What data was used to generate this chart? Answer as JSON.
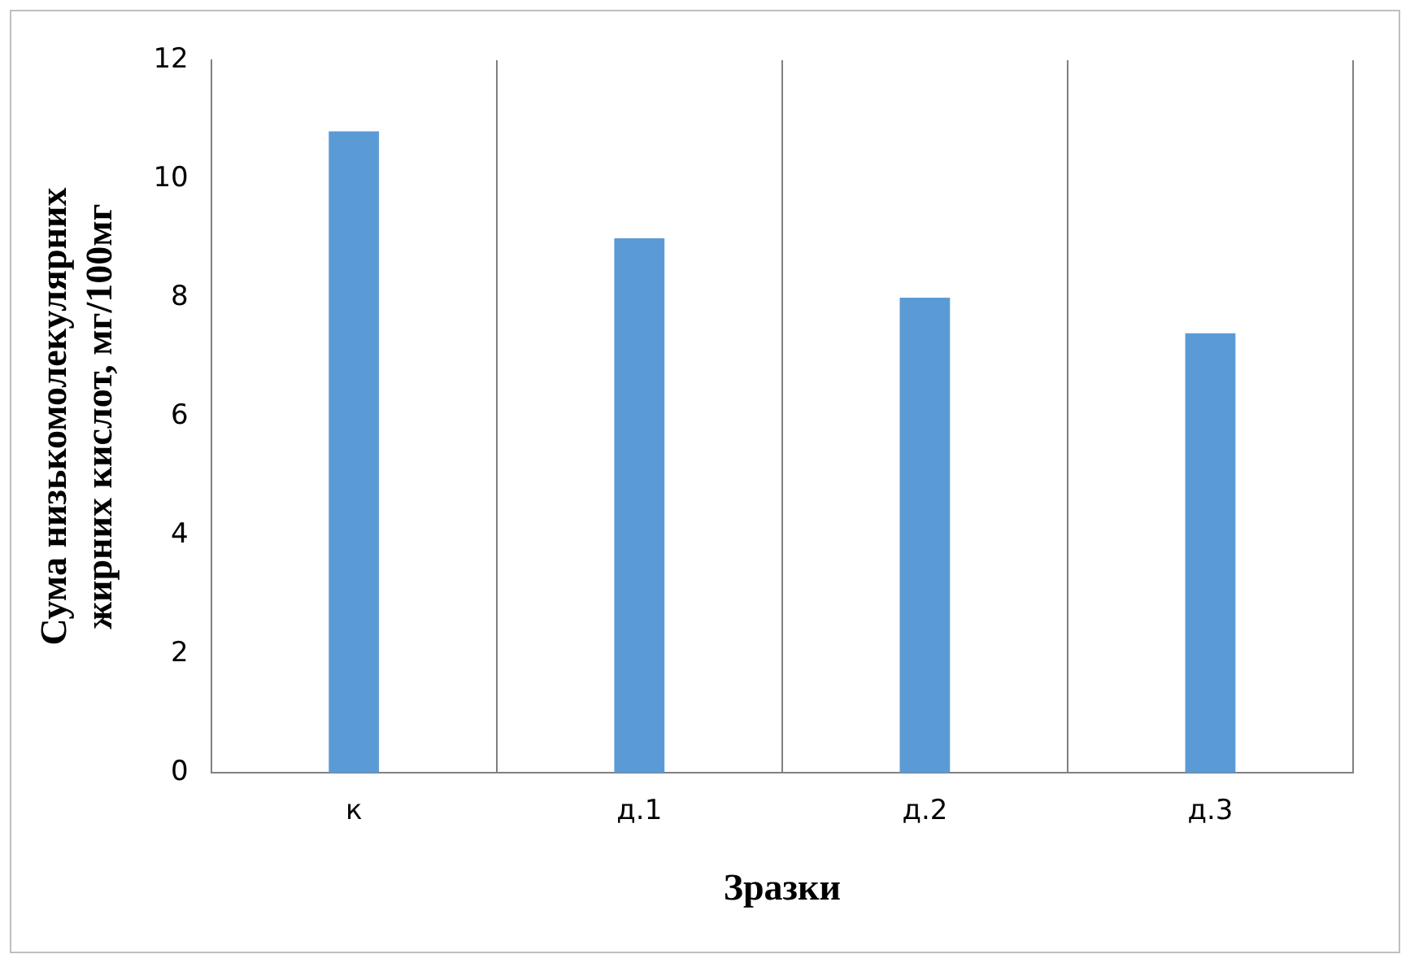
{
  "chart_data": {
    "type": "bar",
    "xlabel": "Зразки",
    "ylabel": "Сума низькомолекулярних жирних кислот, мг/100мг",
    "categories": [
      "к",
      "д.1",
      "д.2",
      "д.3"
    ],
    "values": [
      10.8,
      9.0,
      8.0,
      7.4
    ],
    "color": "#5b9bd5",
    "ylim": [
      0,
      12
    ],
    "yticks": [
      0,
      2,
      4,
      6,
      8,
      10,
      12
    ],
    "grid": "x",
    "legend": false
  }
}
